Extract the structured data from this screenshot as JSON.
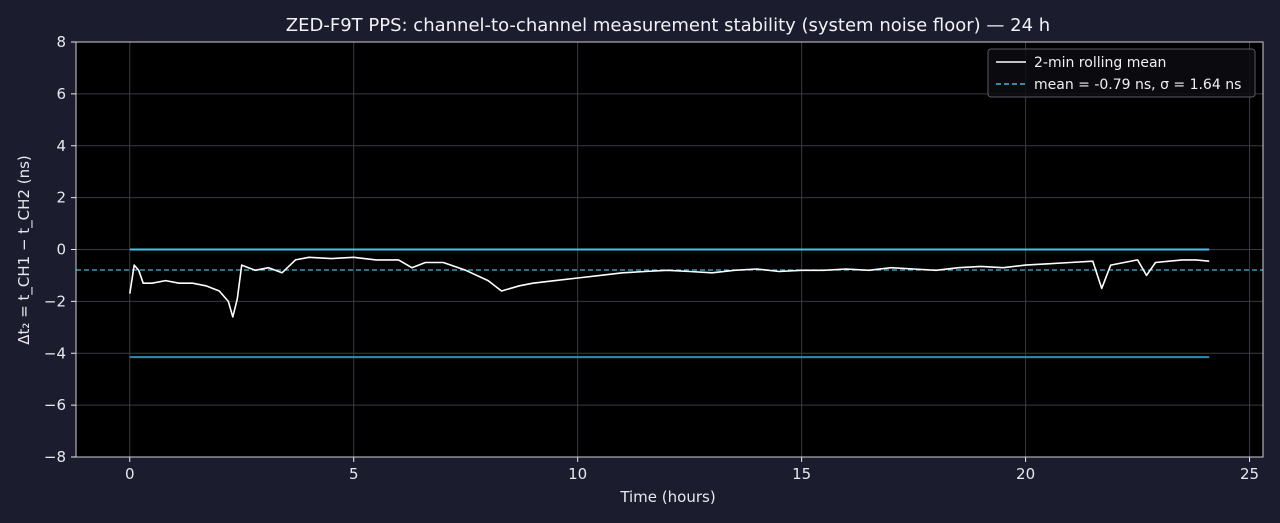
{
  "chart_data": {
    "type": "line",
    "title": "ZED-F9T PPS: channel-to-channel measurement stability (system noise floor) — 24 h",
    "xlabel": "Time (hours)",
    "ylabel": "Δt₂ = t_CH1 − t_CH2  (ns)",
    "xlim": [
      -1.2,
      25.3
    ],
    "ylim": [
      -8,
      8
    ],
    "xticks": [
      0,
      5,
      10,
      15,
      20,
      25
    ],
    "yticks": [
      -8,
      -6,
      -4,
      -2,
      0,
      2,
      4,
      6,
      8
    ],
    "grid": true,
    "legend_position": "top-right",
    "series": [
      {
        "name": "2-min rolling mean",
        "style": "solid",
        "color": "#ffffff",
        "x": [
          0,
          0.1,
          0.2,
          0.3,
          0.5,
          0.8,
          1.1,
          1.4,
          1.7,
          2.0,
          2.2,
          2.3,
          2.4,
          2.5,
          2.8,
          3.1,
          3.4,
          3.7,
          4.0,
          4.5,
          5.0,
          5.5,
          6.0,
          6.3,
          6.6,
          7.0,
          7.5,
          8.0,
          8.3,
          8.7,
          9.0,
          9.5,
          10.0,
          10.5,
          11.0,
          11.5,
          12.0,
          12.5,
          13.0,
          13.5,
          14.0,
          14.5,
          15.0,
          15.5,
          16.0,
          16.5,
          17.0,
          17.5,
          18.0,
          18.5,
          19.0,
          19.5,
          20.0,
          20.5,
          21.0,
          21.5,
          21.7,
          21.9,
          22.2,
          22.5,
          22.7,
          22.9,
          23.2,
          23.5,
          23.8,
          24.1
        ],
        "y": [
          -1.7,
          -0.6,
          -0.8,
          -1.3,
          -1.3,
          -1.2,
          -1.3,
          -1.3,
          -1.4,
          -1.6,
          -2.0,
          -2.6,
          -1.9,
          -0.6,
          -0.8,
          -0.7,
          -0.9,
          -0.4,
          -0.3,
          -0.35,
          -0.3,
          -0.4,
          -0.4,
          -0.7,
          -0.5,
          -0.5,
          -0.8,
          -1.2,
          -1.6,
          -1.4,
          -1.3,
          -1.2,
          -1.1,
          -1.0,
          -0.9,
          -0.85,
          -0.8,
          -0.85,
          -0.9,
          -0.8,
          -0.75,
          -0.85,
          -0.8,
          -0.8,
          -0.75,
          -0.8,
          -0.7,
          -0.75,
          -0.8,
          -0.7,
          -0.65,
          -0.7,
          -0.6,
          -0.55,
          -0.5,
          -0.45,
          -1.5,
          -0.6,
          -0.5,
          -0.4,
          -1.0,
          -0.5,
          -0.45,
          -0.4,
          -0.4,
          -0.45
        ]
      },
      {
        "name": "mean = -0.79 ns, σ = 1.64 ns",
        "style": "dashed",
        "color": "#3fb8d8",
        "x": [
          -1.2,
          25.3
        ],
        "y": [
          -0.79,
          -0.79
        ]
      },
      {
        "name": "",
        "style": "solid",
        "color": "#45c3e6",
        "x": [
          0,
          24.1
        ],
        "y": [
          0,
          0
        ]
      },
      {
        "name": "",
        "style": "solid",
        "color": "#2a8fb0",
        "x": [
          0,
          24.1
        ],
        "y": [
          -4.15,
          -4.15
        ]
      }
    ]
  },
  "colors": {
    "figure_background": "#1b1c2e",
    "plot_background": "#000000",
    "grid": "#3a3a44",
    "text": "#e8e8ee",
    "legend_border": "#5a5a66"
  }
}
